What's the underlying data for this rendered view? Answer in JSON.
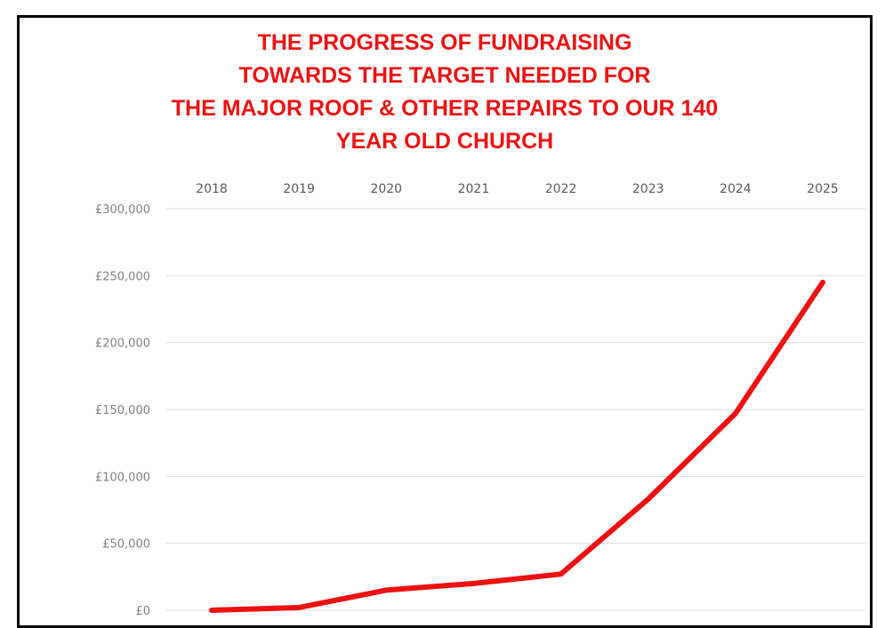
{
  "chart_data": {
    "type": "line",
    "title_lines": [
      "THE PROGRESS OF FUNDRAISING",
      "TOWARDS THE TARGET NEEDED FOR",
      "THE MAJOR ROOF & OTHER REPAIRS TO OUR 140",
      "YEAR OLD CHURCH"
    ],
    "categories": [
      "2018",
      "2019",
      "2020",
      "2021",
      "2022",
      "2023",
      "2024",
      "2025"
    ],
    "series": [
      {
        "color": "#ee1111",
        "values": [
          0,
          2000,
          15000,
          20000,
          27000,
          83000,
          147000,
          245000
        ]
      }
    ],
    "y_ticks": [
      "£0",
      "£50,000",
      "£100,000",
      "£150,000",
      "£200,000",
      "£250,000",
      "£300,000"
    ],
    "ylim": [
      0,
      300000
    ],
    "x_axis_position": "top",
    "grid": true,
    "colors": {
      "title": "#ee1111",
      "line": "#ee1111",
      "grid": "#d9d9d9"
    }
  }
}
